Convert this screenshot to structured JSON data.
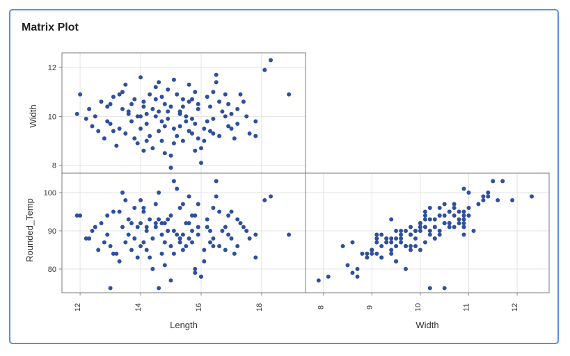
{
  "chart_data": {
    "type": "scatter",
    "title": "Matrix Plot",
    "variables": [
      "Length",
      "Width",
      "Rounded_Temp"
    ],
    "marker_color": "#2e4f9e",
    "grid": true,
    "panels": [
      {
        "x": "Length",
        "y": "Width",
        "xlim": [
          11.4,
          19.45
        ],
        "ylim": [
          7.68,
          12.6
        ],
        "yticks": [
          8,
          10,
          12
        ],
        "xticks": [
          12,
          14,
          16,
          18
        ]
      },
      {
        "x": "Length",
        "y": "Rounded_Temp",
        "xlim": [
          11.4,
          19.45
        ],
        "ylim": [
          73.8,
          105.1
        ],
        "xticks": [
          12,
          14,
          16,
          18
        ],
        "yticks": [
          80,
          90,
          100
        ]
      },
      {
        "x": "Width",
        "y": "Rounded_Temp",
        "xlim": [
          7.63,
          12.66
        ],
        "ylim": [
          73.8,
          105.1
        ],
        "xticks": [
          8,
          9,
          10,
          11,
          12
        ],
        "yticks": [
          80,
          90,
          100
        ]
      }
    ],
    "axis_labels": {
      "left_top": "Width",
      "left_bottom": "Rounded_Temp",
      "bottom_left": "Length",
      "bottom_right": "Width"
    },
    "points_columns": [
      "Length",
      "Width",
      "Rounded_Temp"
    ],
    "points": [
      [
        14.2,
        10.1,
        91
      ],
      [
        15.6,
        9.4,
        88
      ],
      [
        13.1,
        10.8,
        95
      ],
      [
        16.4,
        9.9,
        86
      ],
      [
        14.8,
        10.5,
        92
      ],
      [
        15.1,
        8.9,
        84
      ],
      [
        12.4,
        9.6,
        90
      ],
      [
        17.2,
        10.3,
        93
      ],
      [
        14.5,
        11.2,
        97
      ],
      [
        15.9,
        9.1,
        89
      ],
      [
        13.7,
        9.8,
        85
      ],
      [
        16.8,
        10.9,
        91
      ],
      [
        14.1,
        8.6,
        87
      ],
      [
        15.3,
        10.2,
        96
      ],
      [
        12.9,
        10.4,
        94
      ],
      [
        16.1,
        9.5,
        82
      ],
      [
        14.9,
        9.9,
        90
      ],
      [
        13.4,
        11.0,
        100
      ],
      [
        17.6,
        9.3,
        88
      ],
      [
        15.7,
        10.7,
        94
      ],
      [
        14.3,
        9.2,
        83
      ],
      [
        16.5,
        11.4,
        99
      ],
      [
        13.9,
        10.0,
        91
      ],
      [
        15.0,
        8.4,
        86
      ],
      [
        12.2,
        9.9,
        88
      ],
      [
        17.0,
        10.1,
        95
      ],
      [
        14.7,
        10.8,
        92
      ],
      [
        15.8,
        9.7,
        80
      ],
      [
        13.5,
        9.3,
        87
      ],
      [
        16.3,
        10.4,
        90
      ],
      [
        14.0,
        11.6,
        98
      ],
      [
        15.4,
        9.0,
        85
      ],
      [
        12.7,
        10.6,
        92
      ],
      [
        16.9,
        9.6,
        89
      ],
      [
        14.6,
        9.4,
        93
      ],
      [
        15.2,
        10.9,
        101
      ],
      [
        13.2,
        8.8,
        84
      ],
      [
        17.4,
        10.6,
        91
      ],
      [
        14.4,
        10.3,
        88
      ],
      [
        16.0,
        8.7,
        78
      ],
      [
        13.8,
        10.7,
        96
      ],
      [
        15.5,
        10.0,
        92
      ],
      [
        12.0,
        10.9,
        94
      ],
      [
        16.6,
        9.2,
        86
      ],
      [
        14.9,
        11.1,
        90
      ],
      [
        15.9,
        10.5,
        97
      ],
      [
        13.3,
        9.5,
        82
      ],
      [
        17.8,
        9.8,
        89
      ],
      [
        14.2,
        9.0,
        85
      ],
      [
        15.1,
        11.5,
        103
      ],
      [
        13.6,
        10.2,
        89
      ],
      [
        16.2,
        10.8,
        93
      ],
      [
        14.8,
        8.5,
        81
      ],
      [
        15.7,
        9.3,
        87
      ],
      [
        12.5,
        10.0,
        91
      ],
      [
        17.1,
        9.1,
        84
      ],
      [
        14.1,
        10.6,
        95
      ],
      [
        16.7,
        10.2,
        90
      ],
      [
        13.0,
        9.7,
        86
      ],
      [
        15.3,
        9.6,
        88
      ],
      [
        14.5,
        10.0,
        92
      ],
      [
        16.4,
        11.0,
        96
      ],
      [
        13.9,
        8.9,
        83
      ],
      [
        15.0,
        10.4,
        94
      ],
      [
        12.8,
        9.1,
        87
      ],
      [
        17.3,
        10.9,
        92
      ],
      [
        14.7,
        9.8,
        89
      ],
      [
        15.6,
        11.3,
        99
      ],
      [
        13.4,
        10.3,
        91
      ],
      [
        16.1,
        9.0,
        85
      ],
      [
        14.3,
        10.9,
        93
      ],
      [
        15.8,
        8.6,
        79
      ],
      [
        12.3,
        10.3,
        88
      ],
      [
        16.9,
        10.5,
        94
      ],
      [
        14.0,
        9.5,
        86
      ],
      [
        15.4,
        10.7,
        97
      ],
      [
        13.1,
        9.4,
        84
      ],
      [
        17.5,
        10.0,
        90
      ],
      [
        14.6,
        11.4,
        100
      ],
      [
        16.3,
        9.4,
        87
      ],
      [
        13.7,
        10.5,
        92
      ],
      [
        15.2,
        9.2,
        89
      ],
      [
        12.6,
        9.4,
        85
      ],
      [
        16.6,
        10.6,
        95
      ],
      [
        14.4,
        8.7,
        80
      ],
      [
        15.9,
        10.3,
        91
      ],
      [
        13.5,
        11.3,
        98
      ],
      [
        17.0,
        9.5,
        88
      ],
      [
        14.9,
        10.2,
        93
      ],
      [
        15.5,
        9.8,
        86
      ],
      [
        18.3,
        12.3,
        99
      ],
      [
        18.9,
        10.9,
        89
      ],
      [
        11.9,
        10.1,
        94
      ],
      [
        13.0,
        10.5,
        75
      ],
      [
        14.6,
        10.2,
        75
      ],
      [
        15.0,
        7.9,
        77
      ],
      [
        16.0,
        8.1,
        78
      ],
      [
        18.1,
        11.9,
        98
      ],
      [
        17.8,
        9.2,
        83
      ],
      [
        16.5,
        11.7,
        103
      ],
      [
        14.2,
        9.7,
        90
      ],
      [
        15.3,
        10.1,
        87
      ],
      [
        13.3,
        10.9,
        95
      ],
      [
        16.2,
        9.8,
        91
      ],
      [
        14.7,
        9.0,
        84
      ],
      [
        15.6,
        10.6,
        92
      ],
      [
        12.9,
        9.8,
        89
      ],
      [
        17.2,
        9.7,
        86
      ],
      [
        14.1,
        10.4,
        96
      ],
      [
        15.8,
        11.0,
        94
      ],
      [
        13.8,
        9.1,
        88
      ],
      [
        16.8,
        10.0,
        85
      ],
      [
        14.5,
        10.7,
        91
      ],
      [
        15.1,
        9.5,
        90
      ],
      [
        13.6,
        10.1,
        93
      ],
      [
        16.4,
        9.3,
        88
      ],
      [
        14.8,
        9.6,
        87
      ],
      [
        15.4,
        10.4,
        89
      ],
      [
        14.0,
        10.0,
        92
      ],
      [
        15.7,
        9.9,
        90
      ]
    ]
  }
}
